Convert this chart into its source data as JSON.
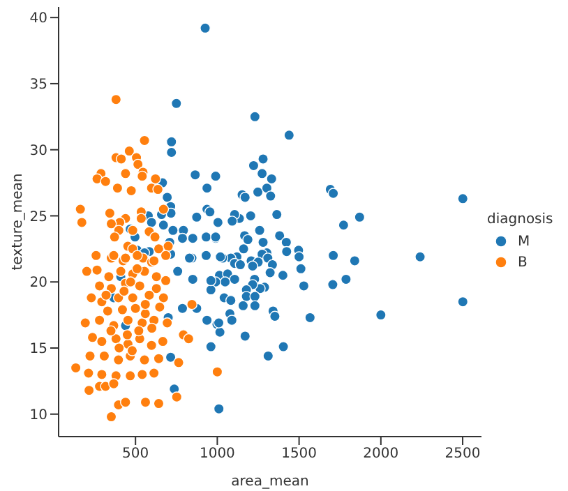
{
  "chart_data": {
    "type": "scatter",
    "xlabel": "area_mean",
    "ylabel": "texture_mean",
    "legend_title": "diagnosis",
    "legend": "right",
    "marker": "circle",
    "grid": false,
    "xlim": [
      30,
      2615
    ],
    "ylim": [
      8.3,
      40.8
    ],
    "xticks": [
      500,
      1000,
      1500,
      2000,
      2500
    ],
    "yticks": [
      10,
      15,
      20,
      25,
      30,
      35,
      40
    ],
    "series": [
      {
        "name": "M",
        "color": "#1f77b4",
        "x": [
          1230,
          1439,
          1280,
          1222,
          1274,
          1332,
          990,
          1248,
          1303,
          1326,
          1152,
          1170,
          1691,
          1709,
          2501,
          1870,
          1772,
          1364,
          1204,
          1135,
          1004,
          1259,
          1167,
          1187,
          1381,
          1422,
          1280,
          990,
          1161,
          1497,
          1500,
          1424,
          1709,
          2240,
          1840,
          1303,
          1274,
          1309,
          1207,
          1250,
          1120,
          1083,
          1106,
          1141,
          1033,
          1337,
          1323,
          1511,
          1216,
          1401,
          1228,
          1013,
          1063,
          1106,
          1048,
          990,
          1706,
          1787,
          1529,
          1289,
          1262,
          1216,
          1178,
          961,
          1042,
          1083,
          1178,
          1230,
          1158,
          1230,
          2501,
          2000,
          1567,
          1341,
          1352,
          1077,
          1089,
          998,
          1016,
          1170,
          961,
          1404,
          1311,
          1010,
          926,
          750,
          720,
          720,
          665,
          865,
          937,
          694,
          715,
          717,
          659,
          578,
          598,
          671,
          729,
          793,
          937,
          955,
          874,
          1106,
          1091,
          850,
          932,
          990,
          787,
          709,
          468,
          497,
          511,
          584,
          715,
          845,
          932,
          1019,
          555,
          830,
          758,
          850,
          961,
          787,
          874,
          937,
          700,
          715,
          737,
          410,
          367,
          439,
          1009
        ],
        "values": [
          32.5,
          31.1,
          29.3,
          28.8,
          28.2,
          27.8,
          28.0,
          26.8,
          27.1,
          26.5,
          26.6,
          26.4,
          27.0,
          26.7,
          26.3,
          24.9,
          24.3,
          25.1,
          25.0,
          24.8,
          24.5,
          23.9,
          23.5,
          23.2,
          23.5,
          23.0,
          23.0,
          23.3,
          22.5,
          22.4,
          21.9,
          22.3,
          22.0,
          21.9,
          21.6,
          22.2,
          22.1,
          21.8,
          21.6,
          21.5,
          21.9,
          21.8,
          21.4,
          21.3,
          21.8,
          21.3,
          20.7,
          21.0,
          21.2,
          20.5,
          20.2,
          20.5,
          20.6,
          20.2,
          20.0,
          20.0,
          19.8,
          20.2,
          19.7,
          19.6,
          19.5,
          19.8,
          19.4,
          19.4,
          18.8,
          18.6,
          18.9,
          18.9,
          18.2,
          18.2,
          18.5,
          17.5,
          17.3,
          17.8,
          17.4,
          17.6,
          17.1,
          16.8,
          16.2,
          15.9,
          15.1,
          15.1,
          14.4,
          10.4,
          39.2,
          33.5,
          30.6,
          29.8,
          27.5,
          28.1,
          27.1,
          26.4,
          25.7,
          25.2,
          25.1,
          25.0,
          24.5,
          24.3,
          23.9,
          23.9,
          25.5,
          25.3,
          24.9,
          25.1,
          24.6,
          23.3,
          23.4,
          23.4,
          23.3,
          23.0,
          24.0,
          23.4,
          22.4,
          22.3,
          22.1,
          21.8,
          22.0,
          21.9,
          22.2,
          21.8,
          20.8,
          20.2,
          20.1,
          18.0,
          18.0,
          17.1,
          17.3,
          14.3,
          11.9,
          20.4,
          18.8,
          16.7,
          16.9
        ]
      },
      {
        "name": "B",
        "color": "#ff7f0e",
        "x": [
          381,
          555,
          462,
          381,
          413,
          506,
          515,
          289,
          265,
          317,
          439,
          546,
          541,
          622,
          390,
          598,
          637,
          474,
          163,
          172,
          343,
          535,
          535,
          439,
          404,
          352,
          671,
          398,
          483,
          584,
          372,
          453,
          483,
          642,
          619,
          700,
          259,
          352,
          424,
          546,
          598,
          367,
          439,
          511,
          613,
          685,
          202,
          265,
          337,
          410,
          483,
          555,
          628,
          685,
          628,
          526,
          439,
          352,
          280,
          230,
          294,
          396,
          483,
          584,
          671,
          648,
          845,
          193,
          280,
          367,
          454,
          541,
          613,
          694,
          237,
          294,
          381,
          454,
          526,
          598,
          667,
          793,
          825,
          222,
          309,
          396,
          468,
          555,
          642,
          135,
          213,
          294,
          381,
          468,
          541,
          613,
          764,
          216,
          280,
          317,
          367,
          396,
          439,
          561,
          642,
          752,
          352,
          1000,
          330,
          420,
          500,
          560,
          450,
          520,
          600,
          400,
          480,
          350,
          430,
          510,
          470,
          560,
          320
        ],
        "values": [
          33.8,
          30.7,
          29.9,
          29.4,
          29.3,
          29.4,
          28.9,
          28.2,
          27.8,
          27.6,
          28.2,
          28.3,
          28.0,
          27.8,
          27.1,
          27.1,
          27.0,
          26.9,
          25.5,
          24.5,
          25.2,
          25.3,
          24.8,
          24.8,
          24.5,
          24.4,
          25.5,
          23.9,
          23.9,
          23.8,
          23.4,
          22.7,
          22.5,
          22.5,
          23.4,
          22.7,
          22.0,
          21.8,
          21.6,
          21.8,
          21.5,
          22.0,
          21.8,
          22.0,
          21.6,
          22.0,
          20.8,
          20.9,
          20.4,
          20.8,
          20.6,
          20.8,
          20.4,
          20.1,
          19.5,
          19.7,
          19.9,
          19.5,
          19.7,
          18.8,
          18.5,
          18.8,
          18.8,
          19.0,
          18.8,
          18.1,
          18.3,
          16.9,
          17.1,
          16.7,
          17.1,
          16.9,
          17.1,
          16.9,
          15.8,
          15.5,
          15.7,
          15.3,
          15.7,
          15.2,
          15.5,
          16.0,
          15.7,
          14.4,
          14.4,
          14.1,
          14.4,
          14.1,
          14.2,
          13.5,
          13.1,
          13.0,
          12.9,
          12.9,
          13.0,
          13.1,
          13.9,
          11.8,
          12.1,
          12.1,
          12.3,
          10.7,
          10.9,
          10.9,
          10.8,
          11.3,
          9.8,
          13.2,
          17.8,
          17.9,
          18.0,
          17.6,
          16.0,
          16.3,
          16.5,
          15.0,
          14.8,
          16.3,
          19.3,
          21.0,
          20.0,
          18.3,
          19.0
        ]
      }
    ]
  }
}
